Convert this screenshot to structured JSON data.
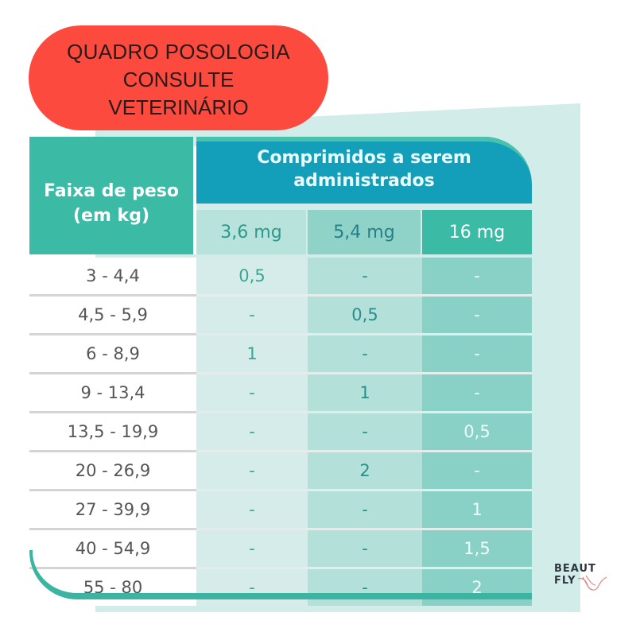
{
  "badge": {
    "line1": "QUADRO POSOLOGIA",
    "line2": "CONSULTE",
    "line3": "VETERINÁRIO",
    "color": "#fc4a3e"
  },
  "table": {
    "weight_header": {
      "line1": "Faixa de peso",
      "line2": "(em kg)"
    },
    "tablets_header": {
      "line1": "Comprimidos a serem",
      "line2": "administrados"
    },
    "columns": [
      "3,6 mg",
      "5,4 mg",
      "16 mg"
    ],
    "rows": [
      {
        "weight": "3 - 4,4",
        "values": [
          "0,5",
          "-",
          "-"
        ]
      },
      {
        "weight": "4,5 - 5,9",
        "values": [
          "-",
          "0,5",
          "-"
        ]
      },
      {
        "weight": "6 - 8,9",
        "values": [
          "1",
          "-",
          "-"
        ]
      },
      {
        "weight": "9 - 13,4",
        "values": [
          "-",
          "1",
          "-"
        ]
      },
      {
        "weight": "13,5 - 19,9",
        "values": [
          "-",
          "-",
          "0,5"
        ]
      },
      {
        "weight": "20 - 26,9",
        "values": [
          "-",
          "2",
          "-"
        ]
      },
      {
        "weight": "27 - 39,9",
        "values": [
          "-",
          "-",
          "1"
        ]
      },
      {
        "weight": "40 - 54,9",
        "values": [
          "-",
          "-",
          "1,5"
        ]
      },
      {
        "weight": "55 - 80",
        "values": [
          "-",
          "-",
          "2"
        ]
      }
    ],
    "colors": {
      "teal": "#3bbaa6",
      "blue": "#139fb9"
    }
  },
  "logo": {
    "line1": "BEAUT",
    "line2": "FLY",
    "icon": "hummingbird-icon"
  }
}
